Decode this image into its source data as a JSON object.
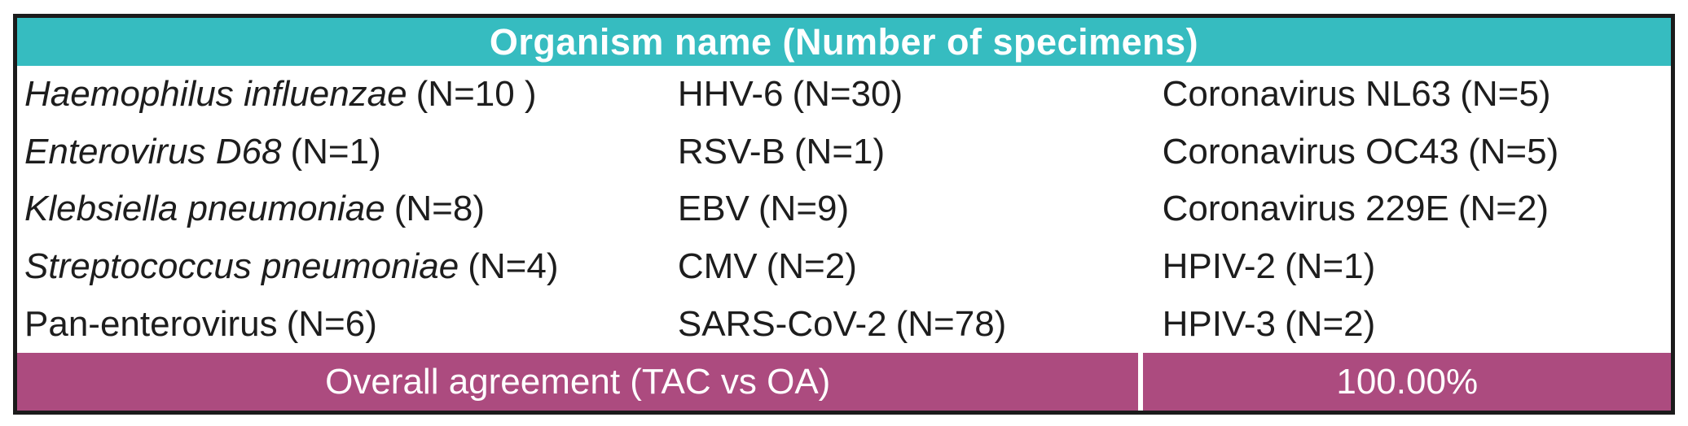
{
  "table": {
    "header": {
      "title": "Organism name (Number of specimens)",
      "bg_color": "#36BCC0",
      "text_color": "#FFFFFF"
    },
    "body": {
      "columns": [
        {
          "cells": [
            {
              "name": "Haemophilus influenzae",
              "count": "(N=10 )",
              "italic": true
            },
            {
              "name": "Enterovirus D68",
              "count": "(N=1)",
              "italic": true
            },
            {
              "name": "Klebsiella pneumoniae",
              "count": "(N=8)",
              "italic": true
            },
            {
              "name": "Streptococcus pneumoniae",
              "count": "(N=4)",
              "italic": true
            },
            {
              "name": "Pan-enterovirus",
              "count": "(N=6)",
              "italic": false
            }
          ]
        },
        {
          "cells": [
            {
              "name": "HHV-6",
              "count": "(N=30)",
              "italic": false
            },
            {
              "name": "RSV-B",
              "count": "(N=1)",
              "italic": false
            },
            {
              "name": "EBV",
              "count": "(N=9)",
              "italic": false
            },
            {
              "name": "CMV",
              "count": "(N=2)",
              "italic": false
            },
            {
              "name": "SARS-CoV-2",
              "count": "(N=78)",
              "italic": false
            }
          ]
        },
        {
          "cells": [
            {
              "name": "Coronavirus NL63",
              "count": "(N=5)",
              "italic": false
            },
            {
              "name": "Coronavirus OC43",
              "count": "(N=5)",
              "italic": false
            },
            {
              "name": "Coronavirus 229E",
              "count": "(N=2)",
              "italic": false
            },
            {
              "name": "HPIV-2",
              "count": "(N=1)",
              "italic": false
            },
            {
              "name": "HPIV-3",
              "count": "(N=2)",
              "italic": false
            }
          ]
        }
      ]
    },
    "footer": {
      "label": "Overall agreement (TAC vs OA)",
      "value": "100.00%",
      "bg_color": "#AC4B7F",
      "text_color": "#FFFFFF"
    }
  }
}
